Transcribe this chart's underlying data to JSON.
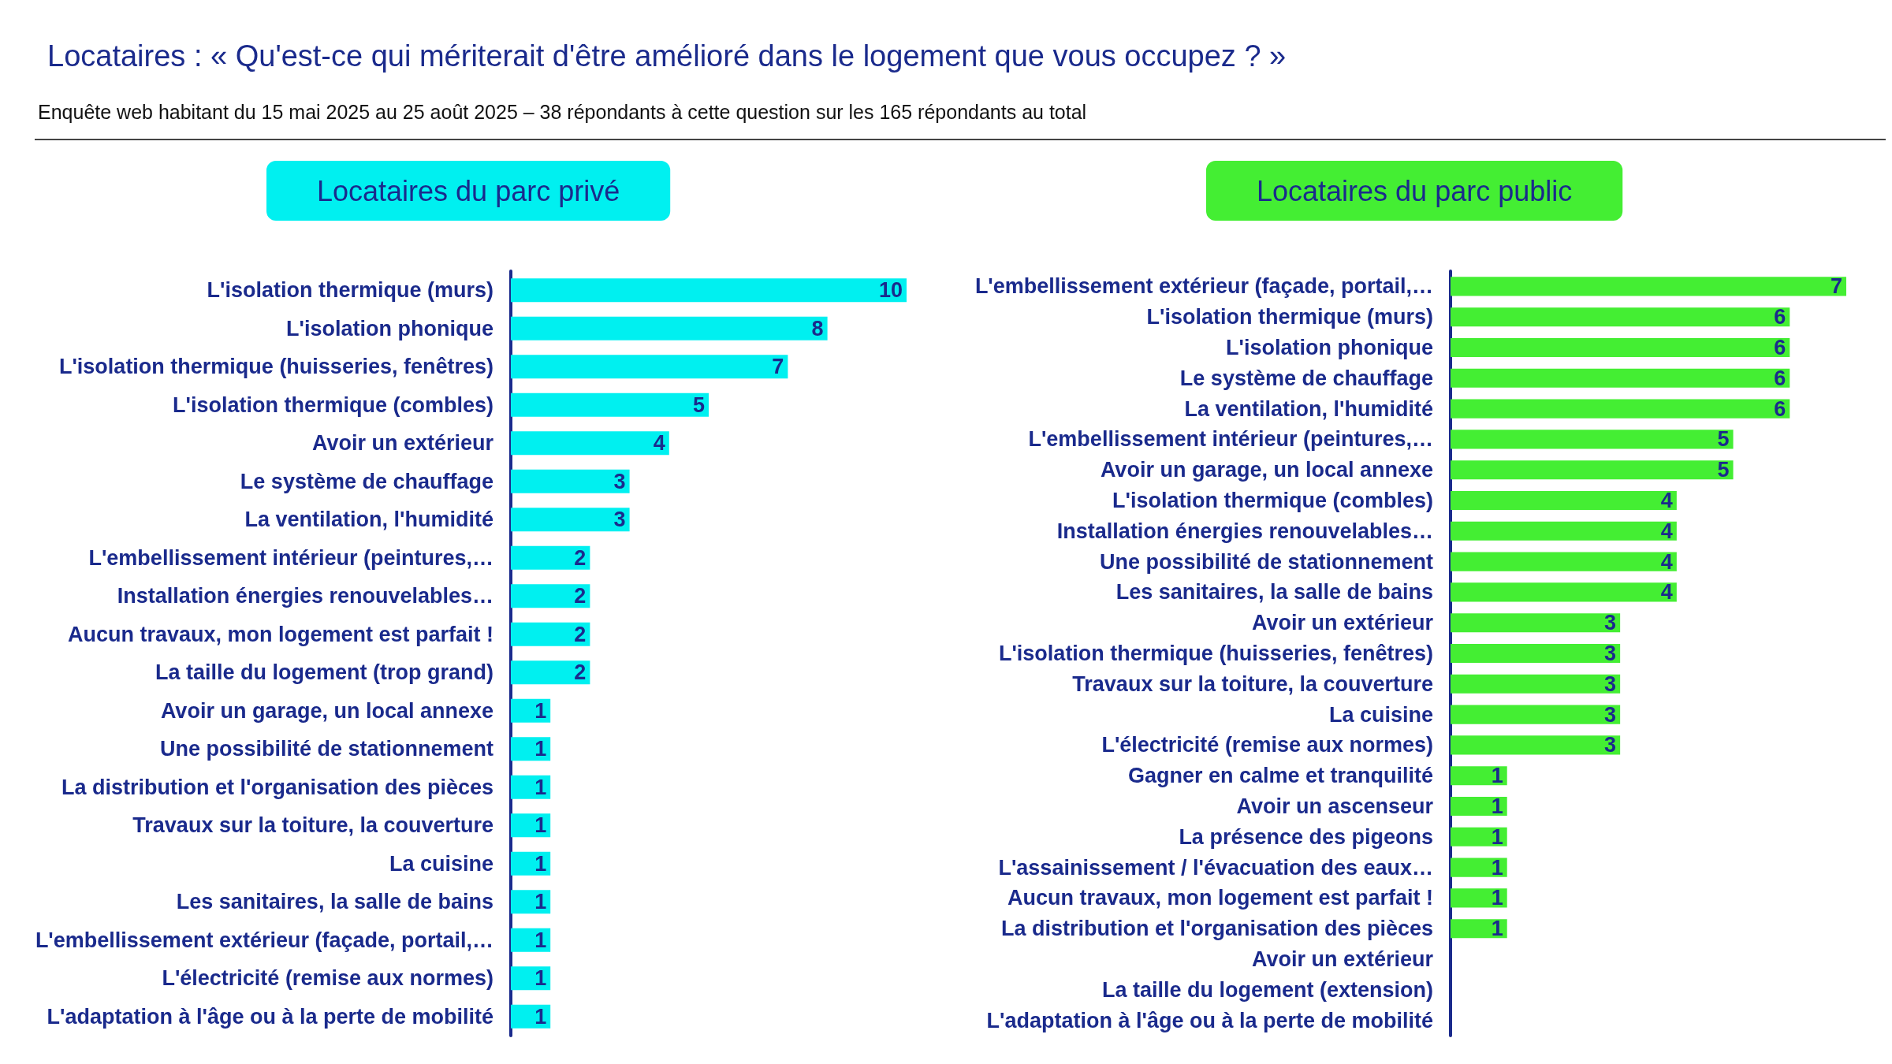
{
  "chart_data": [
    {
      "type": "other",
      "title": "Locataires : « Qu'est-ce qui mériterait d'être amélioré dans le logement que vous occupez ? »",
      "subtitle": "Enquête web habitant du 15 mai 2025 au 25 août 2025 – 38 répondants à cette question sur les 165 répondants au total"
    },
    {
      "type": "bar",
      "orientation": "horizontal",
      "title": "Locataires du parc privé",
      "tick_labels": "y",
      "data_labels": true,
      "categories": [
        "L'isolation thermique (murs)",
        "L'isolation phonique",
        "L'isolation thermique (huisseries, fenêtres)",
        "L'isolation thermique (combles)",
        "Avoir un extérieur",
        "Le système de chauffage",
        "La ventilation, l'humidité",
        "L'embellissement intérieur (peintures,…",
        "Installation énergies renouvelables…",
        "Aucun travaux, mon logement est parfait !",
        "La taille du logement (trop grand)",
        "Avoir un garage, un local annexe",
        "Une possibilité de stationnement",
        "La distribution et l'organisation des pièces",
        "Travaux sur la toiture, la couverture",
        "La cuisine",
        "Les sanitaires, la salle de bains",
        "L'embellissement extérieur (façade, portail,…",
        "L'électricité (remise aux normes)",
        "L'adaptation à l'âge ou à la perte de mobilité"
      ],
      "series": [
        {
          "color": "#00f0f0",
          "values": [
            10,
            8,
            7,
            5,
            4,
            3,
            3,
            2,
            2,
            2,
            2,
            1,
            1,
            1,
            1,
            1,
            1,
            1,
            1,
            1
          ]
        }
      ]
    },
    {
      "type": "bar",
      "orientation": "horizontal",
      "title": "Locataires du parc public",
      "tick_labels": "y",
      "categories": [
        "L'embellissement extérieur (façade, portail,…",
        "L'isolation thermique (murs)",
        "L'isolation phonique",
        "Le système de chauffage",
        "La ventilation, l'humidité",
        "L'embellissement intérieur (peintures,…",
        "Avoir un garage, un local annexe",
        "L'isolation thermique (combles)",
        "Installation énergies renouvelables…",
        "Une possibilité de stationnement",
        "Les sanitaires, la salle de bains",
        "Avoir un extérieur",
        "L'isolation thermique (huisseries, fenêtres)",
        "Travaux sur la toiture, la couverture",
        "La cuisine",
        "L'électricité (remise aux normes)",
        "Gagner en calme et tranquilité",
        "Avoir un ascenseur",
        "La présence des pigeons",
        "L'assainissement / l'évacuation des eaux…",
        "Aucun travaux, mon logement est parfait !",
        "La distribution et l'organisation des pièces",
        "Avoir un extérieur",
        "La taille du logement (extension)",
        "L'adaptation à l'âge ou à la perte de mobilité"
      ],
      "series": [
        {
          "color": "#44ee33",
          "values": [
            7,
            6,
            6,
            6,
            6,
            5,
            5,
            4,
            4,
            4,
            4,
            3,
            3,
            3,
            3,
            3,
            1,
            1,
            1,
            1,
            1,
            1,
            0,
            0,
            0
          ],
          "value_labels": [
            "7",
            "6",
            "6",
            "6",
            "6",
            "5",
            "5",
            "4",
            "4",
            "4",
            "4",
            "3",
            "3",
            "3",
            "3",
            "3",
            "1",
            "1",
            "1",
            "1",
            "1",
            "1",
            null,
            null,
            null
          ]
        }
      ]
    }
  ]
}
